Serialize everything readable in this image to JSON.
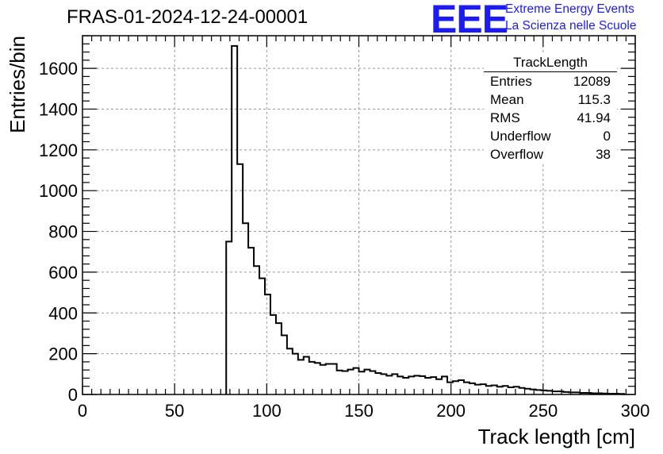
{
  "header": {
    "run_title": "FRAS-01-2024-12-24-00001",
    "logo_text": "EEE",
    "logo_line1": "Extreme Energy Events",
    "logo_line2": "La Scienza nelle Scuole",
    "logo_color": "#1c1cf0"
  },
  "stats": {
    "title": "TrackLength",
    "rows": [
      {
        "label": "Entries",
        "value": "12089"
      },
      {
        "label": "Mean",
        "value": "115.3"
      },
      {
        "label": "RMS",
        "value": "41.94"
      },
      {
        "label": "Underflow",
        "value": "0"
      },
      {
        "label": "Overflow",
        "value": "38"
      }
    ]
  },
  "chart_data": {
    "type": "bar",
    "subtype": "histogram-step",
    "xlabel": "Track length [cm]",
    "ylabel": "Entries/bin",
    "xlim": [
      0,
      300
    ],
    "ylim": [
      0,
      1760
    ],
    "x_ticks": [
      0,
      50,
      100,
      150,
      200,
      250,
      300
    ],
    "y_ticks": [
      0,
      200,
      400,
      600,
      800,
      1000,
      1200,
      1400,
      1600
    ],
    "grid": true,
    "legend": "top-right",
    "bin_width": 3,
    "bin_edges_start": 78,
    "bin_values": [
      750,
      1710,
      1130,
      840,
      720,
      630,
      570,
      490,
      390,
      350,
      290,
      225,
      200,
      170,
      185,
      160,
      155,
      145,
      150,
      150,
      118,
      115,
      122,
      130,
      112,
      122,
      115,
      105,
      100,
      92,
      100,
      88,
      82,
      88,
      92,
      90,
      82,
      85,
      75,
      88,
      60,
      65,
      70,
      60,
      55,
      48,
      50,
      42,
      45,
      38,
      42,
      35,
      38,
      32,
      28,
      25,
      22,
      20,
      18,
      15,
      15,
      12,
      10,
      10,
      8,
      8,
      6,
      6,
      5,
      4,
      4,
      3
    ],
    "line_color": "#000000"
  }
}
